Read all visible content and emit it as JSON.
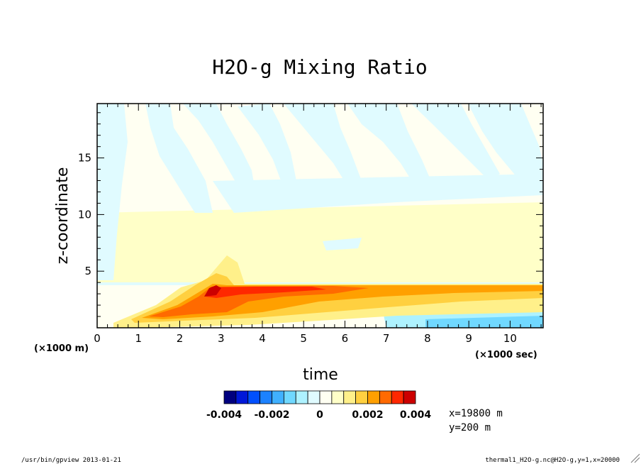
{
  "chart_data": {
    "type": "heatmap",
    "title": "H2O-g Mixing Ratio",
    "xlabel": "time",
    "ylabel": "z-coordinate",
    "x_unit": "(×1000 sec)",
    "y_unit": "(×1000 m)",
    "xlim": [
      0,
      10.8
    ],
    "ylim": [
      0,
      19.8
    ],
    "x_ticks": [
      "0",
      "1",
      "2",
      "3",
      "4",
      "5",
      "6",
      "7",
      "8",
      "9",
      "10"
    ],
    "y_ticks": [
      "5",
      "10",
      "15"
    ],
    "colorbar": {
      "levels": [
        -0.004,
        -0.0035,
        -0.003,
        -0.0025,
        -0.002,
        -0.0015,
        -0.001,
        -0.0005,
        0,
        0.0005,
        0.001,
        0.0015,
        0.002,
        0.0025,
        0.003,
        0.0035,
        0.004
      ],
      "colors": [
        "#00007f",
        "#0018d8",
        "#0050ff",
        "#1c82ff",
        "#40b0ff",
        "#70d8ff",
        "#aef2ff",
        "#e0fbff",
        "#fffff2",
        "#ffffc8",
        "#fff08a",
        "#ffd040",
        "#ffa000",
        "#ff6a00",
        "#ff2800",
        "#cc0000"
      ],
      "tick_labels": [
        "-0.004",
        "-0.002",
        "0",
        "0.002",
        "0.004"
      ]
    },
    "regions": [
      {
        "name": "background-near-zero",
        "x": [
          0,
          10.8
        ],
        "y": [
          0,
          19.8
        ],
        "value": 0.0002
      },
      {
        "name": "upper-light-blue-streaks",
        "x": [
          0.2,
          10.8
        ],
        "y": [
          9,
          19.8
        ],
        "value": -0.0005
      },
      {
        "name": "low-level-orange-band",
        "x": [
          2.8,
          10.8
        ],
        "y": [
          3,
          3.8
        ],
        "value": 0.0025
      },
      {
        "name": "core-max",
        "x": [
          2.6,
          3.2
        ],
        "y": [
          2.5,
          3.6
        ],
        "value": 0.004
      },
      {
        "name": "surface-blue-layer",
        "x": [
          7,
          10.8
        ],
        "y": [
          0,
          1
        ],
        "value": -0.001
      }
    ]
  },
  "info": {
    "x_pos": "x=19800 m",
    "y_pos": "y=200 m"
  },
  "footer": {
    "left": "/usr/bin/gpview  2013-01-21",
    "right": "thermal1_H2O-g.nc@H2O-g,y=1,x=20000"
  },
  "colors": {
    "frame": "#000000",
    "background": "#ffffff"
  }
}
